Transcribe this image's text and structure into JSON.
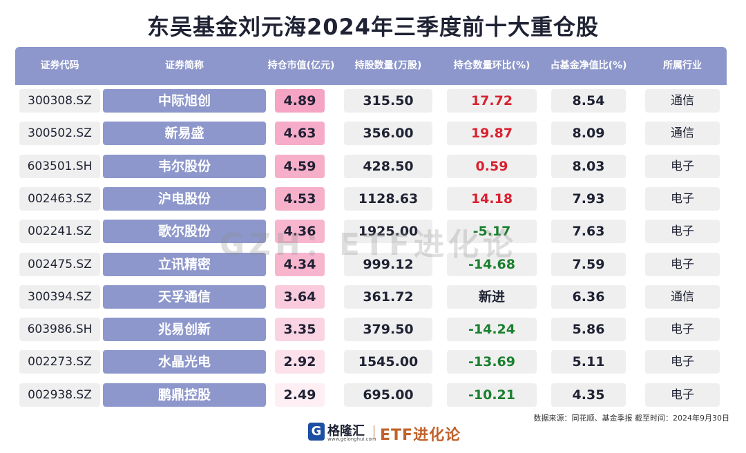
{
  "title": "东吴基金刘元海2024年三季度前十大重仓股",
  "colors": {
    "header_bg": "#8d97cb",
    "name_bg": "#8d97cb",
    "cell_bg": "#efefef",
    "positive": "#d9202f",
    "negative": "#1a7f2e",
    "brand": "#c0622b"
  },
  "columns": [
    "证券代码",
    "证券简称",
    "持仓市值(亿元)",
    "持股数量(万股)",
    "持仓数量环比(%)",
    "占基金净值比(%)",
    "所属行业"
  ],
  "rows": [
    {
      "code": "300308.SZ",
      "name": "中际旭创",
      "mv": "4.89",
      "shares": "315.50",
      "chg": "17.72",
      "pct": "8.54",
      "ind": "通信"
    },
    {
      "code": "300502.SZ",
      "name": "新易盛",
      "mv": "4.63",
      "shares": "356.00",
      "chg": "19.87",
      "pct": "8.09",
      "ind": "通信"
    },
    {
      "code": "603501.SH",
      "name": "韦尔股份",
      "mv": "4.59",
      "shares": "428.50",
      "chg": "0.59",
      "pct": "8.03",
      "ind": "电子"
    },
    {
      "code": "002463.SZ",
      "name": "沪电股份",
      "mv": "4.53",
      "shares": "1128.63",
      "chg": "14.18",
      "pct": "7.93",
      "ind": "电子"
    },
    {
      "code": "002241.SZ",
      "name": "歌尔股份",
      "mv": "4.36",
      "shares": "1925.00",
      "chg": "-5.17",
      "pct": "7.63",
      "ind": "电子"
    },
    {
      "code": "002475.SZ",
      "name": "立讯精密",
      "mv": "4.34",
      "shares": "999.12",
      "chg": "-14.68",
      "pct": "7.59",
      "ind": "电子"
    },
    {
      "code": "300394.SZ",
      "name": "天孚通信",
      "mv": "3.64",
      "shares": "361.72",
      "chg": "新进",
      "pct": "6.36",
      "ind": "通信"
    },
    {
      "code": "603986.SH",
      "name": "兆易创新",
      "mv": "3.35",
      "shares": "379.50",
      "chg": "-14.24",
      "pct": "5.86",
      "ind": "电子"
    },
    {
      "code": "002273.SZ",
      "name": "水晶光电",
      "mv": "2.92",
      "shares": "1545.00",
      "chg": "-13.69",
      "pct": "5.11",
      "ind": "电子"
    },
    {
      "code": "002938.SZ",
      "name": "鹏鼎控股",
      "mv": "2.49",
      "shares": "695.00",
      "chg": "-10.21",
      "pct": "4.35",
      "ind": "电子"
    }
  ],
  "watermark": "GZH：ETF进化论",
  "source": "数据来源：同花顺、基金季报  截至时间：2024年9月30日",
  "footer": {
    "logo_mark": "G",
    "logo_name": "格隆汇",
    "logo_sub": "www.gelonghui.com",
    "brand": "ETF进化论"
  }
}
